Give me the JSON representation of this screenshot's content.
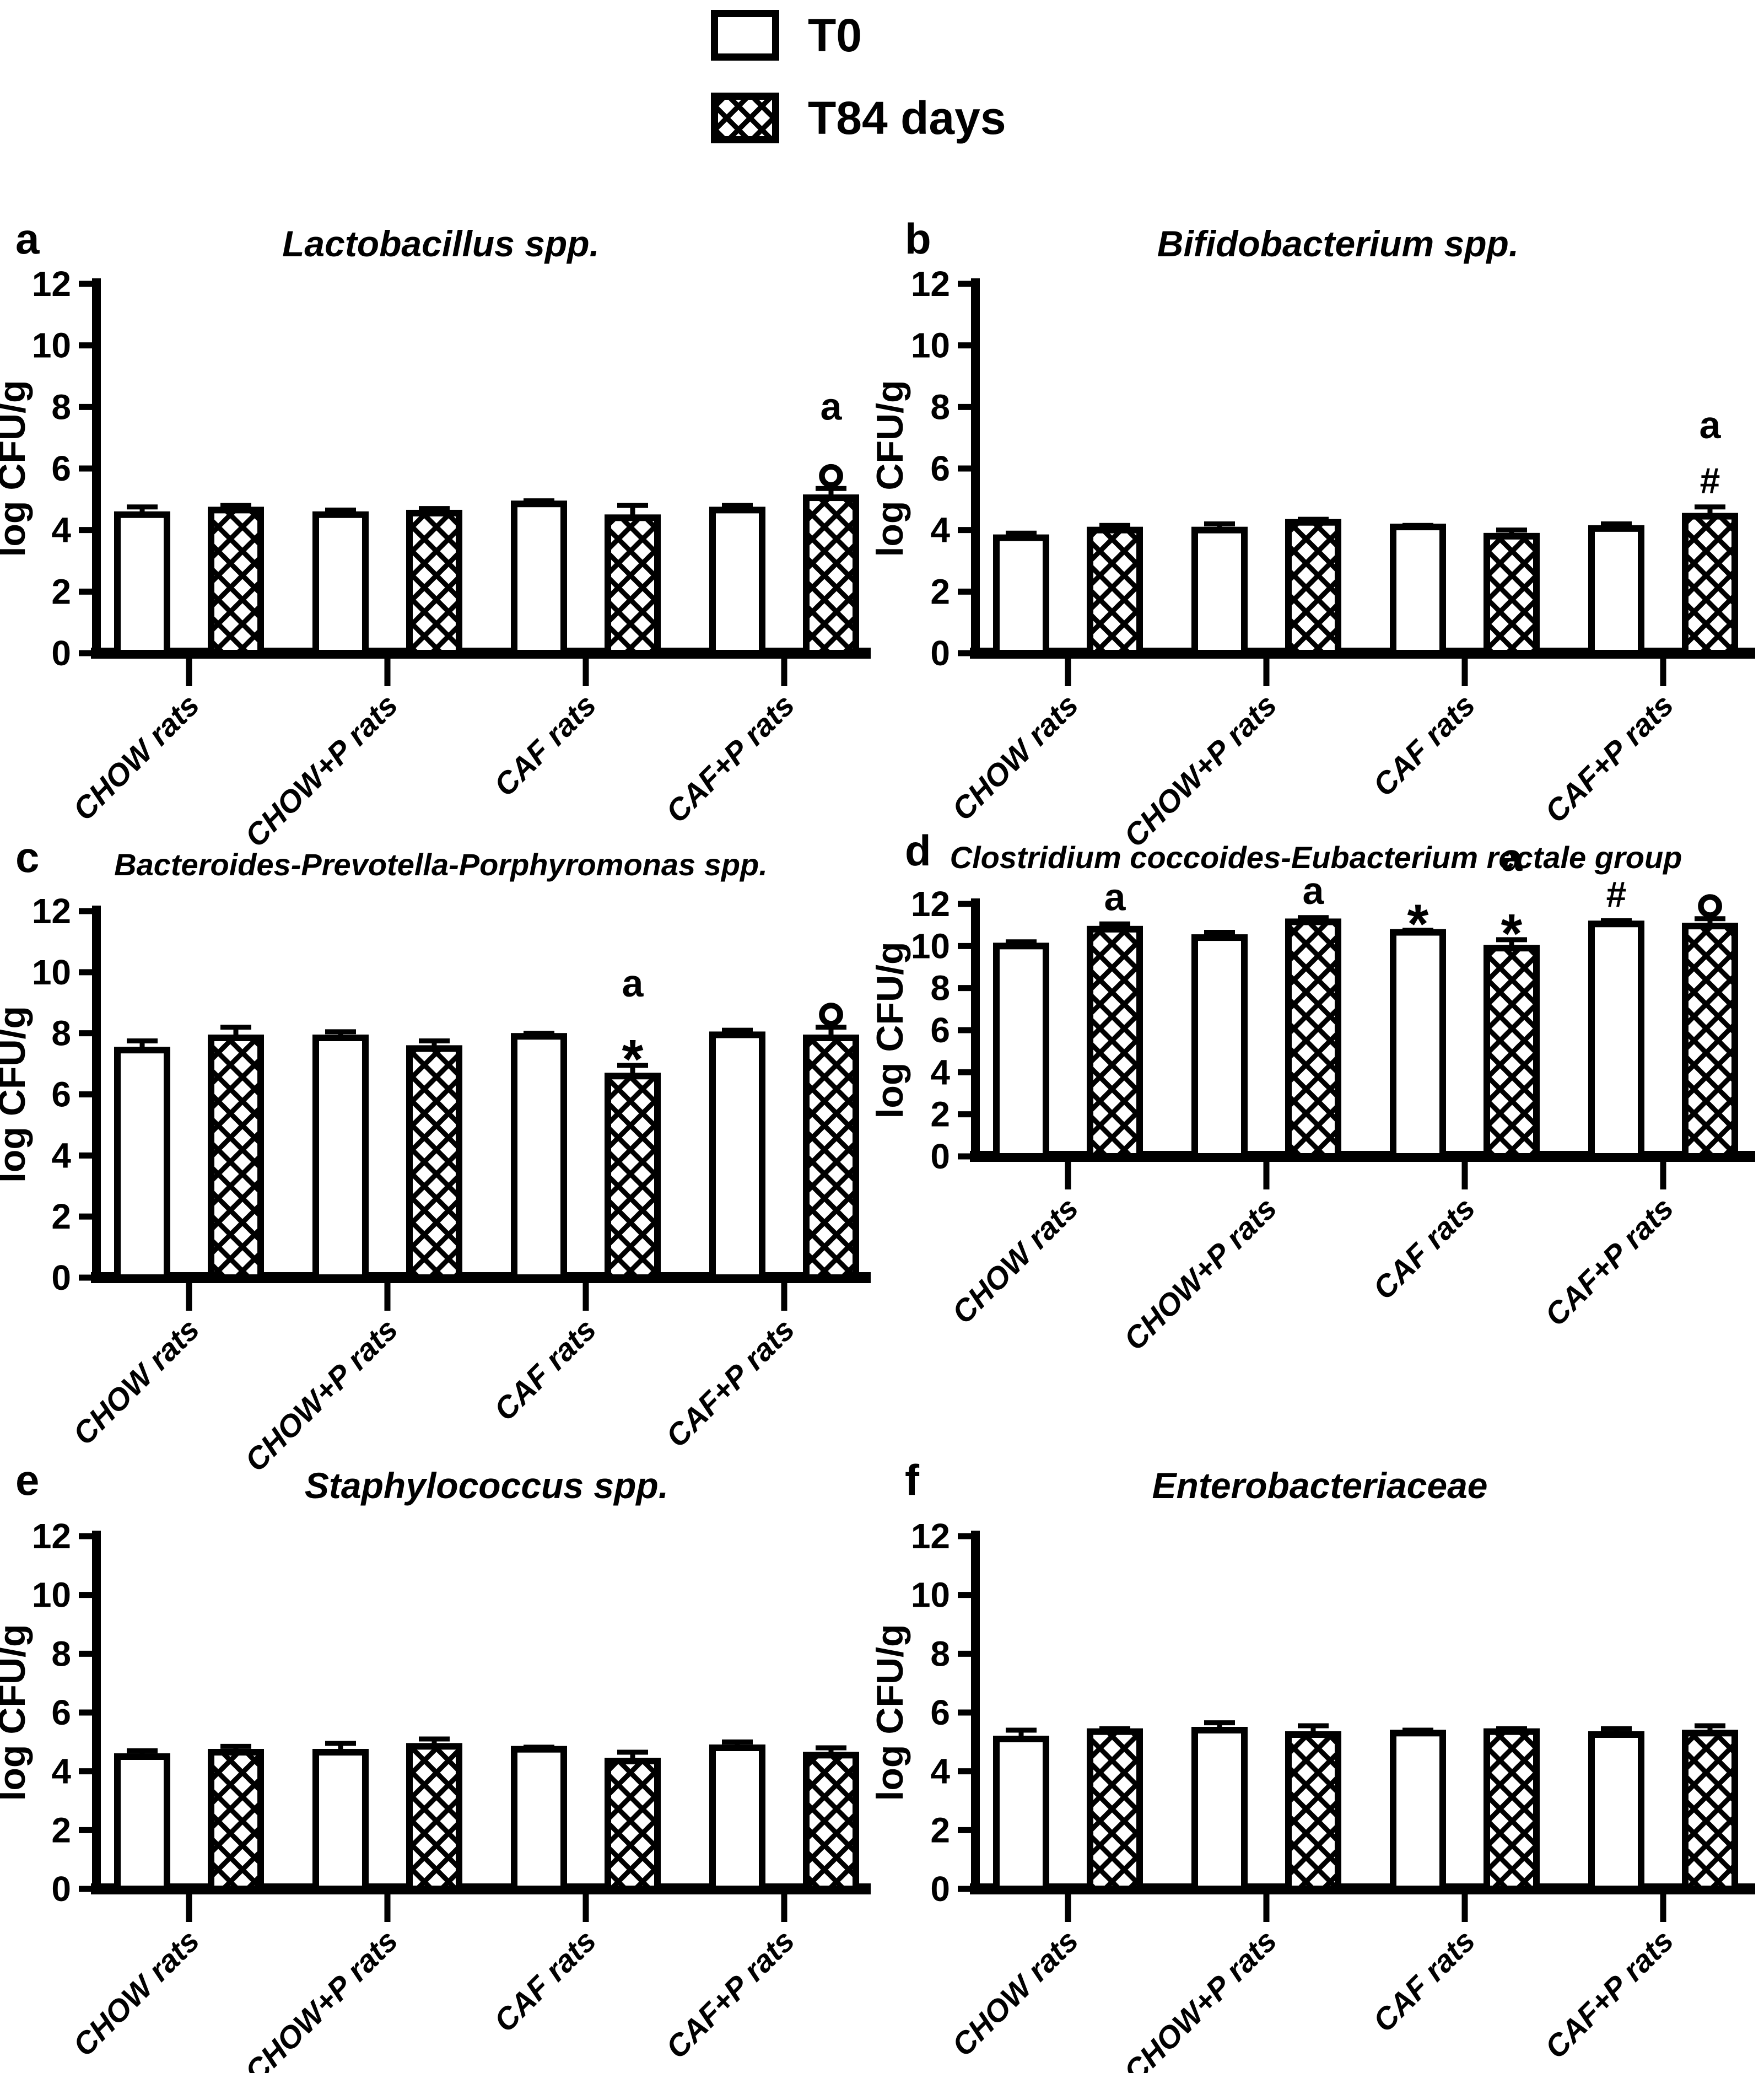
{
  "figure": {
    "background": "#ffffff",
    "foreground": "#000000"
  },
  "legend": {
    "items": [
      {
        "label": "T0",
        "swatch": "open"
      },
      {
        "label": "T84 days",
        "swatch": "crosshatch"
      }
    ]
  },
  "chart_data": {
    "type": "bar",
    "ylabel": "log CFU/g",
    "ylim": [
      0,
      12
    ],
    "yticks": [
      0,
      2,
      4,
      6,
      8,
      10,
      12
    ],
    "grid": false,
    "legend_position": "top-center",
    "categories": [
      "CHOW rats",
      "CHOW+P rats",
      "CAF rats",
      "CAF+P rats"
    ],
    "series": [
      "T0",
      "T84 days"
    ],
    "panels": [
      {
        "letter": "a",
        "title": "Lactobacillus spp.",
        "t0": {
          "values": [
            4.5,
            4.5,
            4.85,
            4.65
          ],
          "errors": [
            0.25,
            0.15,
            0.1,
            0.15
          ],
          "annotations": [
            [],
            [],
            [],
            []
          ]
        },
        "t84": {
          "values": [
            4.65,
            4.55,
            4.4,
            5.05
          ],
          "errors": [
            0.15,
            0.15,
            0.4,
            0.3
          ],
          "annotations": [
            [],
            [],
            [],
            [
              "a",
              "°"
            ]
          ]
        }
      },
      {
        "letter": "b",
        "title": "Bifidobacterium spp.",
        "t0": {
          "values": [
            3.75,
            4.0,
            4.1,
            4.05
          ],
          "errors": [
            0.15,
            0.2,
            0.05,
            0.15
          ],
          "annotations": [
            [],
            [],
            [],
            []
          ]
        },
        "t84": {
          "values": [
            4.0,
            4.25,
            3.8,
            4.45
          ],
          "errors": [
            0.15,
            0.1,
            0.2,
            0.3
          ],
          "annotations": [
            [],
            [],
            [],
            [
              "a",
              "#"
            ]
          ]
        }
      },
      {
        "letter": "c",
        "title": "Bacteroides-Prevotella-Porphyromonas spp.",
        "t0": {
          "values": [
            7.45,
            7.85,
            7.9,
            7.95
          ],
          "errors": [
            0.3,
            0.2,
            0.1,
            0.15
          ],
          "annotations": [
            [],
            [],
            [],
            []
          ]
        },
        "t84": {
          "values": [
            7.85,
            7.5,
            6.6,
            7.85
          ],
          "errors": [
            0.35,
            0.25,
            0.35,
            0.35
          ],
          "annotations": [
            [],
            [],
            [
              "a",
              "*"
            ],
            [
              "°"
            ]
          ]
        }
      },
      {
        "letter": "d",
        "title": "Clostridium coccoides-Eubacterium rectale group",
        "t0": {
          "values": [
            10.0,
            10.4,
            10.65,
            11.05
          ],
          "errors": [
            0.2,
            0.25,
            0.1,
            0.15
          ],
          "annotations": [
            [],
            [],
            [
              "*"
            ],
            [
              "#"
            ]
          ]
        },
        "t84": {
          "values": [
            10.8,
            11.15,
            9.9,
            10.95
          ],
          "errors": [
            0.25,
            0.2,
            0.4,
            0.35
          ],
          "annotations": [
            [
              "a"
            ],
            [
              "a"
            ],
            [
              "a",
              "*"
            ],
            [
              "°"
            ]
          ]
        }
      },
      {
        "letter": "e",
        "title": "Staphylococcus spp.",
        "t0": {
          "values": [
            4.5,
            4.65,
            4.75,
            4.8
          ],
          "errors": [
            0.2,
            0.3,
            0.07,
            0.2
          ],
          "annotations": [
            [],
            [],
            [],
            []
          ]
        },
        "t84": {
          "values": [
            4.65,
            4.85,
            4.35,
            4.55
          ],
          "errors": [
            0.2,
            0.25,
            0.3,
            0.25
          ],
          "annotations": [
            [],
            [],
            [],
            []
          ]
        }
      },
      {
        "letter": "f",
        "title": "Enterobacteriaceae",
        "t0": {
          "values": [
            5.1,
            5.4,
            5.3,
            5.25
          ],
          "errors": [
            0.3,
            0.25,
            0.1,
            0.2
          ],
          "annotations": [
            [],
            [],
            [],
            []
          ]
        },
        "t84": {
          "values": [
            5.35,
            5.25,
            5.35,
            5.3
          ],
          "errors": [
            0.1,
            0.3,
            0.1,
            0.25
          ],
          "annotations": [
            [],
            [],
            [],
            []
          ]
        }
      }
    ]
  }
}
